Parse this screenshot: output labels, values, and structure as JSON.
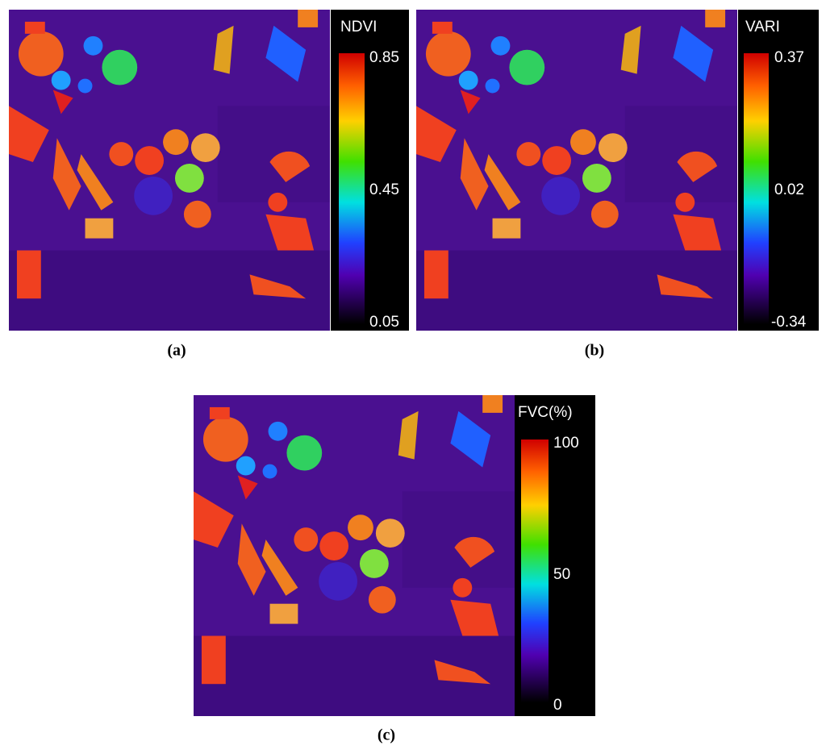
{
  "panels": [
    {
      "title": "NDVI",
      "ticks": [
        0.85,
        0.45,
        0.05
      ],
      "caption": "(a)"
    },
    {
      "title": "VARI",
      "ticks": [
        0.37,
        0.02,
        -0.34
      ],
      "caption": "(b)"
    },
    {
      "title": "FVC(%)",
      "ticks": [
        100,
        50,
        0
      ],
      "caption": "(c)"
    }
  ]
}
